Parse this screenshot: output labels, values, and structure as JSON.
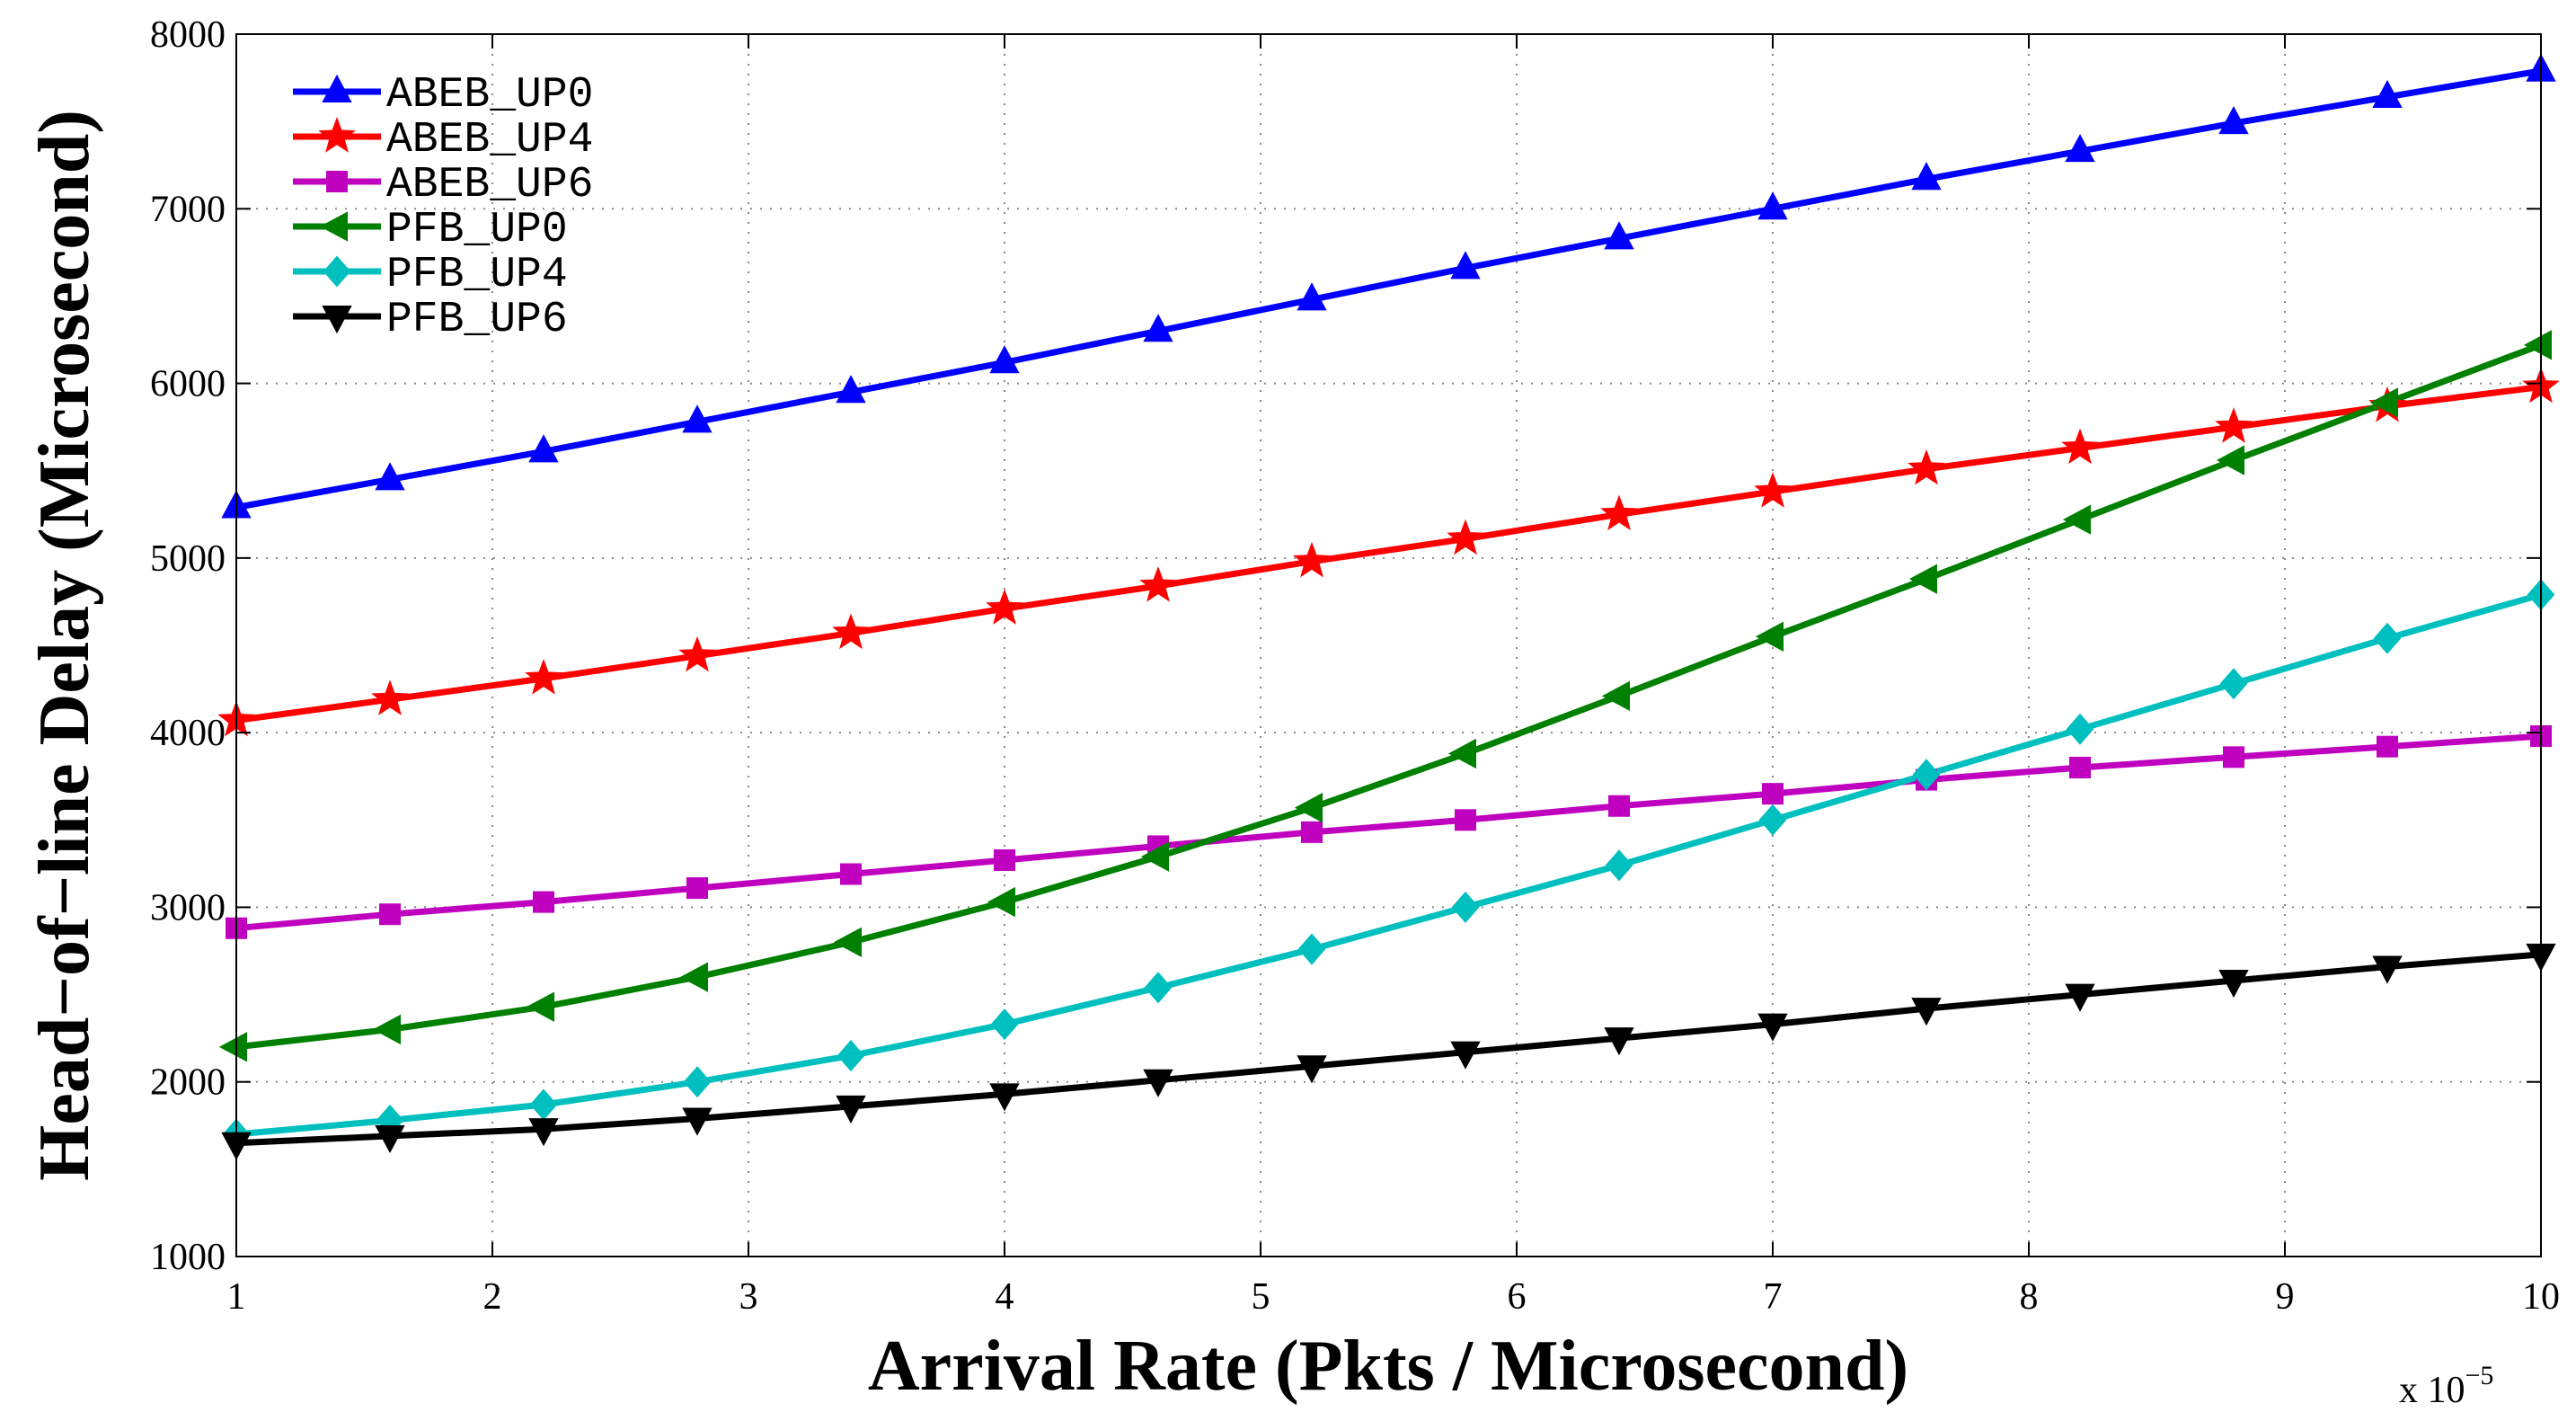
{
  "chart_data": {
    "type": "line",
    "title": "",
    "xlabel": "Arrival Rate (Pkts / Microsecond)",
    "ylabel": "Head−of−line Delay (Microsecond)",
    "x_multiplier_label": "x 10",
    "x_multiplier_exponent": "−5",
    "xlim": [
      1,
      10
    ],
    "ylim": [
      1000,
      8000
    ],
    "xticks": [
      1,
      2,
      3,
      4,
      5,
      6,
      7,
      8,
      9,
      10
    ],
    "yticks": [
      1000,
      2000,
      3000,
      4000,
      5000,
      6000,
      7000,
      8000
    ],
    "grid": true,
    "legend_position": "top-left",
    "x": [
      1,
      1.6,
      2.2,
      2.8,
      3.4,
      4,
      4.6,
      5.2,
      5.8,
      6.4,
      7,
      7.6,
      8.2,
      8.8,
      9.4,
      10
    ],
    "series": [
      {
        "name": "ABEB_UP0",
        "color": "#0000ff",
        "marker": "triangle-up",
        "values": [
          5290,
          5450,
          5610,
          5780,
          5950,
          6120,
          6300,
          6480,
          6660,
          6830,
          7000,
          7170,
          7330,
          7490,
          7640,
          7790
        ]
      },
      {
        "name": "ABEB_UP4",
        "color": "#ff0000",
        "marker": "star",
        "values": [
          4070,
          4190,
          4310,
          4440,
          4570,
          4710,
          4840,
          4980,
          5110,
          5250,
          5380,
          5510,
          5630,
          5750,
          5870,
          5980
        ]
      },
      {
        "name": "ABEB_UP6",
        "color": "#bf00bf",
        "marker": "square",
        "values": [
          2880,
          2960,
          3030,
          3110,
          3190,
          3270,
          3350,
          3430,
          3500,
          3580,
          3650,
          3730,
          3800,
          3860,
          3920,
          3980
        ]
      },
      {
        "name": "PFB_UP0",
        "color": "#008000",
        "marker": "triangle-left",
        "values": [
          2200,
          2300,
          2430,
          2600,
          2800,
          3030,
          3290,
          3570,
          3880,
          4210,
          4550,
          4880,
          5220,
          5560,
          5890,
          6220
        ]
      },
      {
        "name": "PFB_UP4",
        "color": "#00bfbf",
        "marker": "diamond",
        "values": [
          1700,
          1780,
          1870,
          2000,
          2150,
          2330,
          2540,
          2760,
          3000,
          3240,
          3500,
          3760,
          4020,
          4280,
          4540,
          4790
        ]
      },
      {
        "name": "PFB_UP6",
        "color": "#000000",
        "marker": "triangle-down",
        "values": [
          1650,
          1690,
          1730,
          1790,
          1860,
          1930,
          2010,
          2090,
          2170,
          2250,
          2330,
          2420,
          2500,
          2580,
          2660,
          2730
        ]
      }
    ]
  }
}
